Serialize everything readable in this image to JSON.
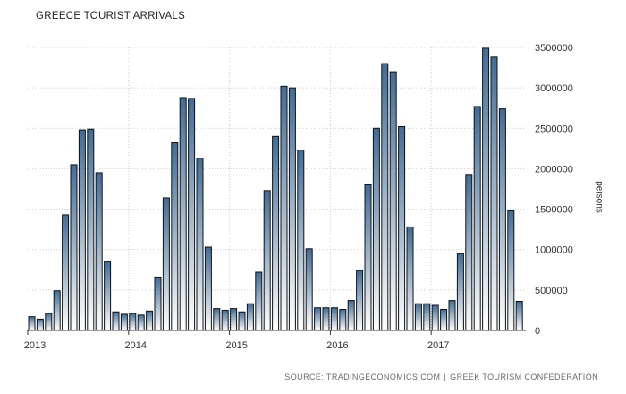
{
  "chart_data": {
    "type": "bar",
    "title": "GREECE TOURIST ARRIVALS",
    "ylabel": "persons",
    "source_label": "SOURCE: TRADINGECONOMICS.COM",
    "source_separator": "|",
    "source_org": "GREEK TOURISM CONFEDERATION",
    "ylim": [
      0,
      3500000
    ],
    "y_ticks": [
      "0",
      "500000",
      "1000000",
      "1500000",
      "2000000",
      "2500000",
      "3000000",
      "3500000"
    ],
    "x_ticks": [
      "2013",
      "2014",
      "2015",
      "2016",
      "2017"
    ],
    "series": [
      {
        "values": [
          170000,
          140000,
          210000,
          490000,
          1430000,
          2050000,
          2480000,
          2490000,
          1950000,
          850000,
          230000,
          200000,
          210000,
          190000,
          240000,
          660000,
          1640000,
          2320000,
          2880000,
          2870000,
          2130000,
          1030000,
          270000,
          250000,
          270000,
          230000,
          330000,
          720000,
          1730000,
          2400000,
          3020000,
          3000000,
          2230000,
          1010000,
          280000,
          280000,
          280000,
          260000,
          370000,
          740000,
          1800000,
          2500000,
          3300000,
          3200000,
          2520000,
          1280000,
          330000,
          330000,
          310000,
          260000,
          370000,
          950000,
          1930000,
          2770000,
          3490000,
          3380000,
          2740000,
          1480000,
          360000
        ]
      }
    ],
    "colors": {
      "bar_top": "#3f6d99",
      "bar_bottom": "#ffffff",
      "bar_stroke": "#111111",
      "grid": "#cccccc"
    },
    "grid": true
  }
}
